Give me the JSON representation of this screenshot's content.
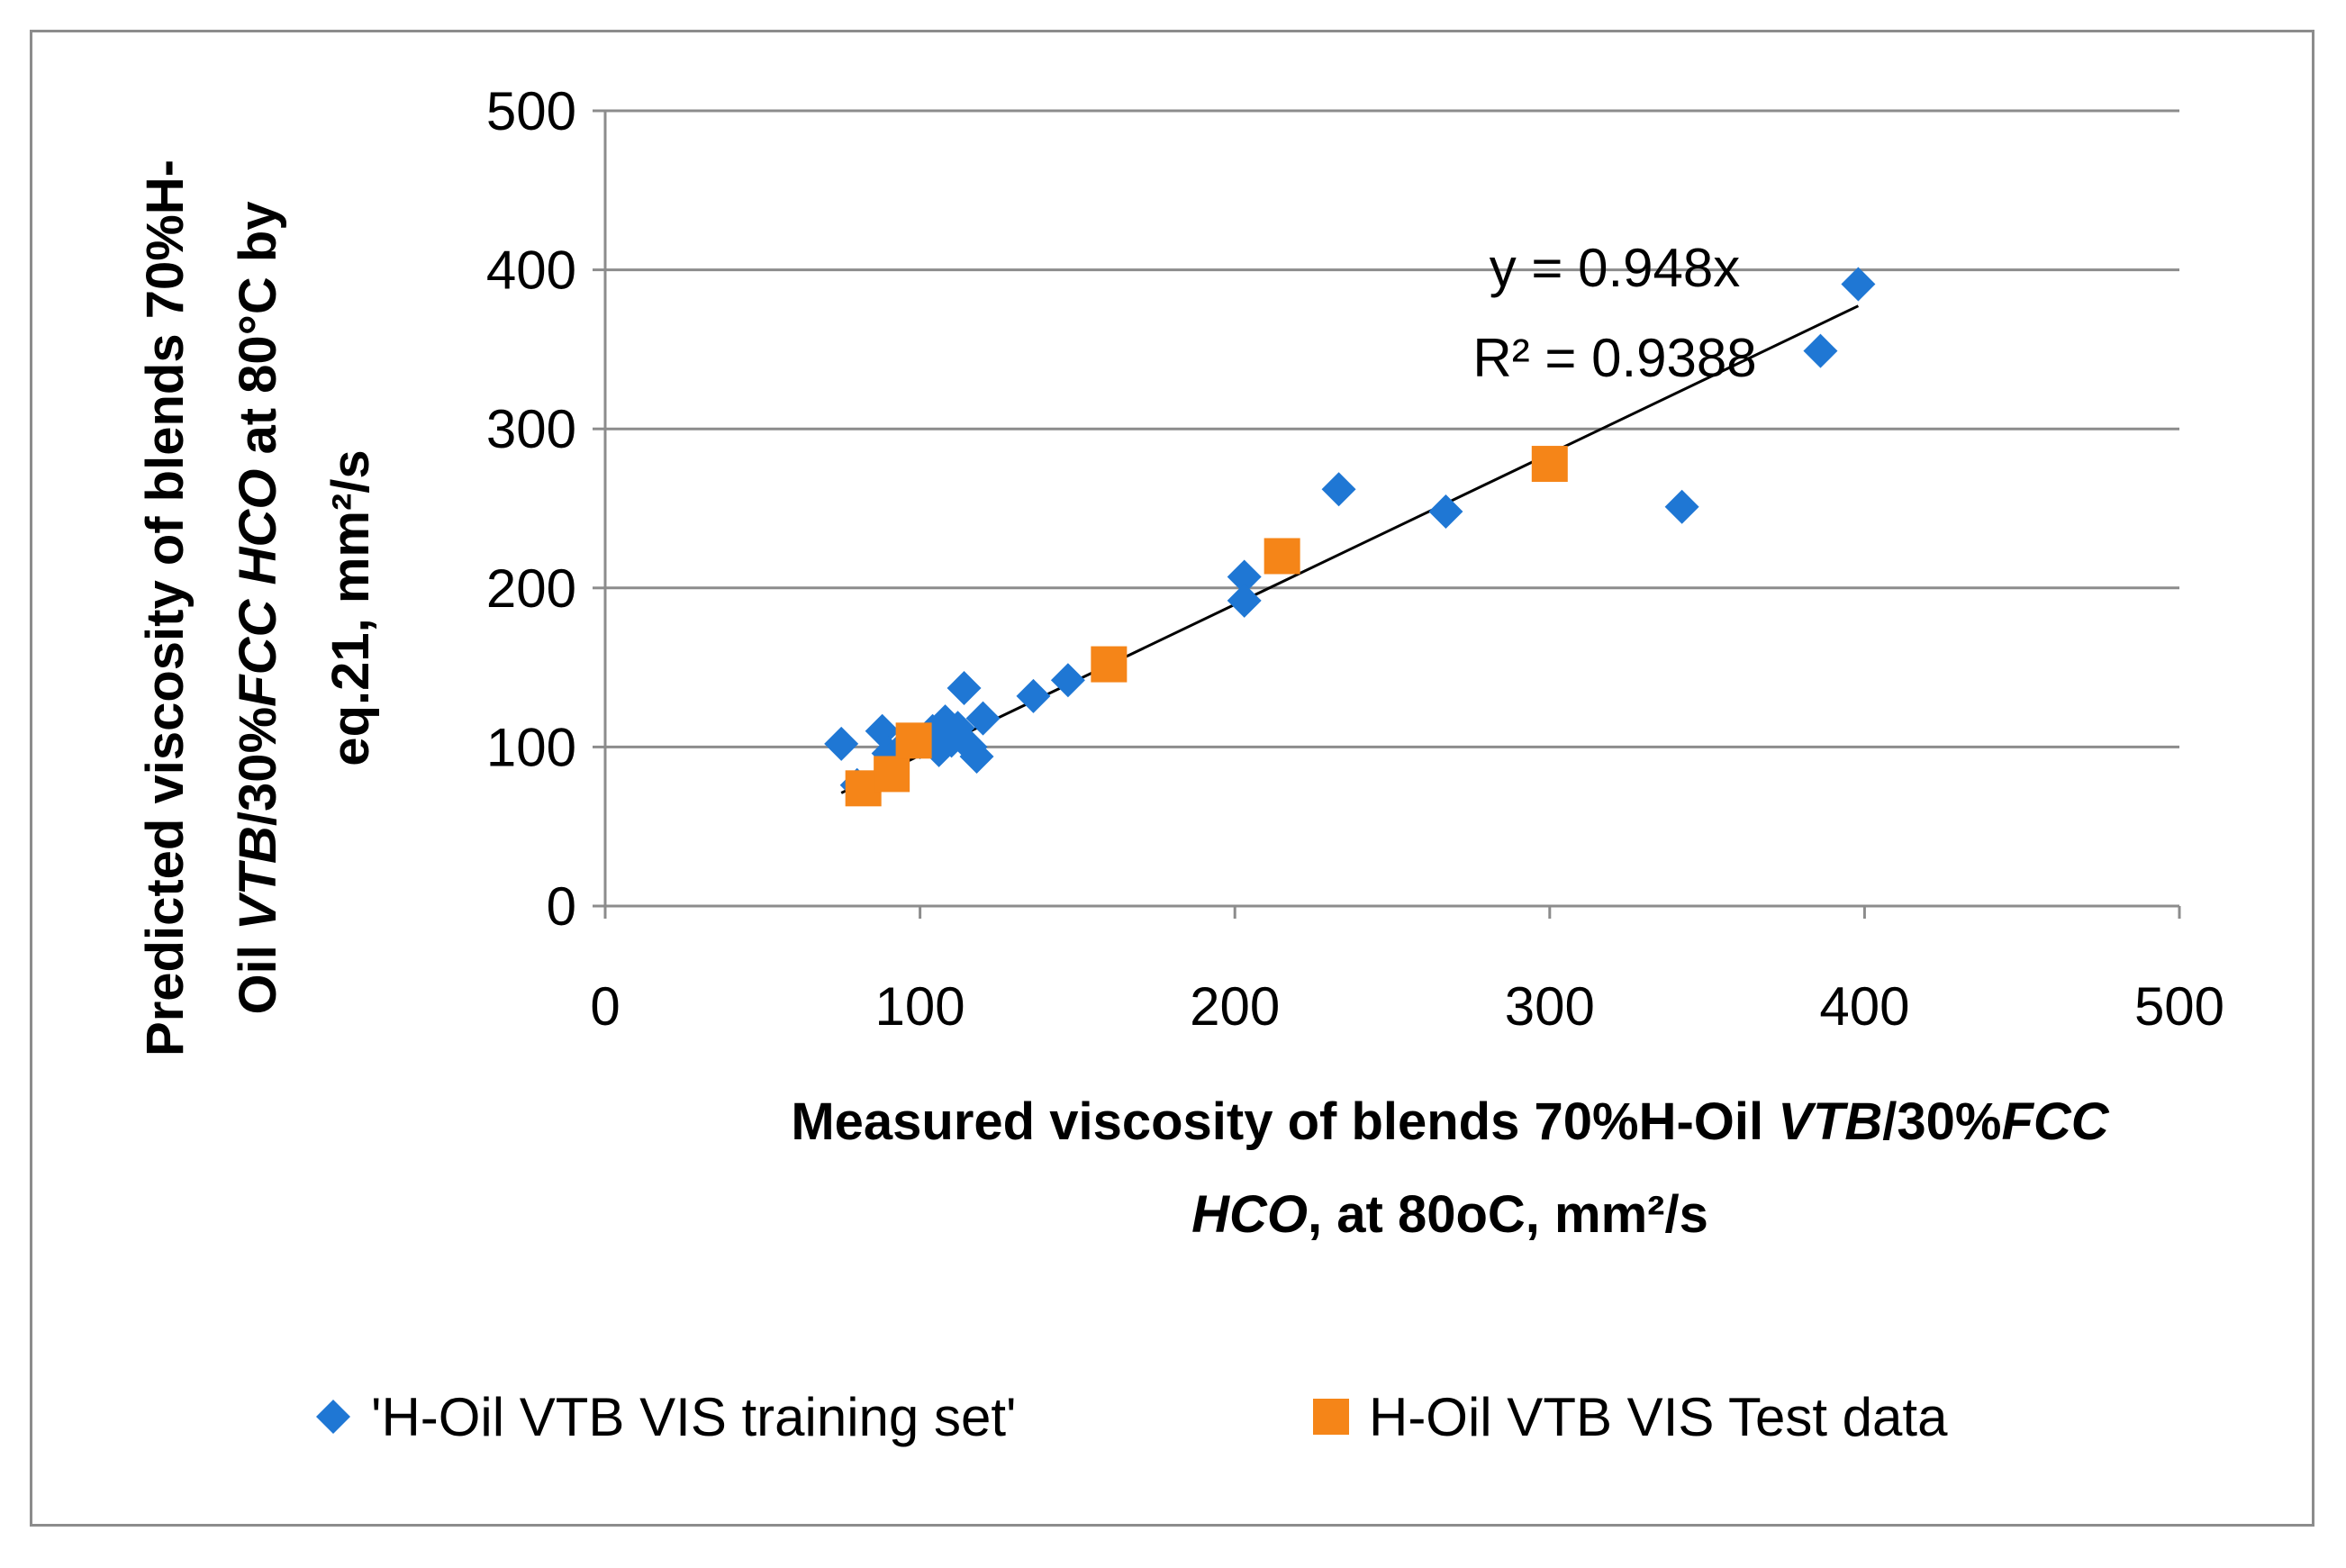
{
  "chart_data": {
    "type": "scatter",
    "title": "",
    "xlabel_parts": [
      {
        "line": 0,
        "text": "Measured viscosity of blends 70%H-Oil ",
        "italic": false
      },
      {
        "line": 0,
        "text": "VTB",
        "italic": true
      },
      {
        "line": 0,
        "text": "/30%",
        "italic": false
      },
      {
        "line": 0,
        "text": "FCC",
        "italic": true
      },
      {
        "line": 1,
        "text": "HCO",
        "italic": true
      },
      {
        "line": 1,
        "text": ", at 80oC, mm²/s",
        "italic": false
      }
    ],
    "ylabel_parts": [
      {
        "line": 0,
        "text": "Predicted viscosity of blends 70%H-",
        "italic": false
      },
      {
        "line": 1,
        "text": "Oil ",
        "italic": false
      },
      {
        "line": 1,
        "text": "VTB",
        "italic": true
      },
      {
        "line": 1,
        "text": "/30%",
        "italic": false
      },
      {
        "line": 1,
        "text": "FCC HCO",
        "italic": true
      },
      {
        "line": 1,
        "text": " at 80°C by",
        "italic": false
      },
      {
        "line": 2,
        "text": "eq.21, mm²/s",
        "italic": false
      }
    ],
    "xlim": [
      0,
      500
    ],
    "ylim": [
      0,
      500
    ],
    "xticks": [
      "0",
      "100",
      "200",
      "300",
      "400",
      "500"
    ],
    "yticks": [
      "0",
      "100",
      "200",
      "300",
      "400",
      "500"
    ],
    "grid": "horizontal",
    "legend_position": "bottom",
    "series": [
      {
        "name": "'H-Oil VTB VIS training set'",
        "marker": "diamond",
        "color": "#1f77d4",
        "points": [
          [
            75,
            102
          ],
          [
            80,
            76
          ],
          [
            88,
            110
          ],
          [
            90,
            96
          ],
          [
            95,
            101
          ],
          [
            100,
            103
          ],
          [
            104,
            110
          ],
          [
            106,
            98
          ],
          [
            108,
            116
          ],
          [
            110,
            104
          ],
          [
            112,
            112
          ],
          [
            114,
            137
          ],
          [
            116,
            100
          ],
          [
            118,
            94
          ],
          [
            120,
            118
          ],
          [
            136,
            132
          ],
          [
            147,
            142
          ],
          [
            203,
            207
          ],
          [
            203,
            192
          ],
          [
            233,
            262
          ],
          [
            267,
            248
          ],
          [
            342,
            251
          ],
          [
            386,
            349
          ],
          [
            398,
            391
          ]
        ]
      },
      {
        "name": "H-Oil VTB VIS Test data",
        "marker": "square",
        "color": "#f58518",
        "points": [
          [
            82,
            74
          ],
          [
            91,
            83
          ],
          [
            98,
            104
          ],
          [
            160,
            152
          ],
          [
            215,
            220
          ],
          [
            300,
            278
          ]
        ]
      }
    ],
    "trendline": {
      "slope": 0.948,
      "x_range": [
        75,
        398
      ],
      "color": "#000000",
      "equation": "y = 0.948x",
      "r_squared": "R² = 0.9388"
    }
  }
}
